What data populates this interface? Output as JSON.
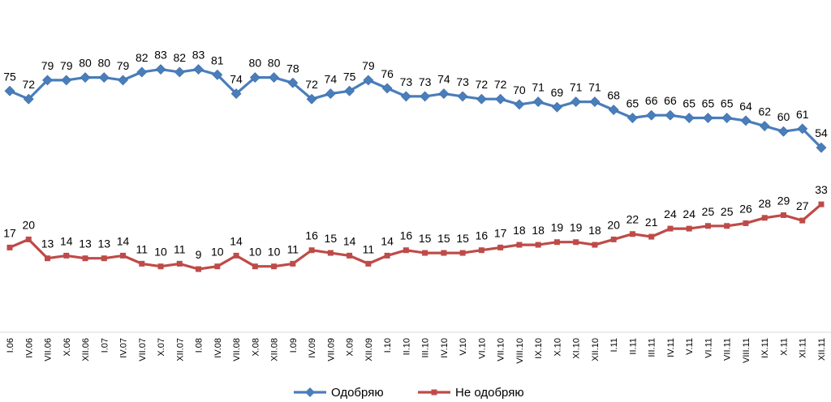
{
  "chart_data": {
    "type": "line",
    "categories": [
      "I.06",
      "IV.06",
      "VII.06",
      "X.06",
      "XII.06",
      "I.07",
      "IV.07",
      "VII.07",
      "X.07",
      "XII.07",
      "I.08",
      "IV.08",
      "VII.08",
      "X.08",
      "XII.08",
      "I.09",
      "IV.09",
      "VII.09",
      "X.09",
      "XII.09",
      "I.10",
      "II.10",
      "III.10",
      "IV.10",
      "V.10",
      "VI.10",
      "VII.10",
      "VIII.10",
      "IX.10",
      "X.10",
      "XI.10",
      "XII.10",
      "I.11",
      "II.11",
      "III.11",
      "IV.11",
      "V.11",
      "VI.11",
      "VII.11",
      "VIII.11",
      "IX.11",
      "X.11",
      "XI.11",
      "XII.11"
    ],
    "series": [
      {
        "name": "Одобряю",
        "color": "#4A7EBB",
        "marker": "diamond",
        "values": [
          75,
          72,
          79,
          79,
          80,
          80,
          79,
          82,
          83,
          82,
          83,
          81,
          74,
          80,
          80,
          78,
          72,
          74,
          75,
          79,
          76,
          73,
          73,
          74,
          73,
          72,
          72,
          70,
          71,
          69,
          71,
          71,
          68,
          65,
          66,
          66,
          65,
          65,
          65,
          64,
          62,
          60,
          61,
          54
        ]
      },
      {
        "name": "Не одобряю",
        "color": "#BE4B48",
        "marker": "square",
        "values": [
          17,
          20,
          13,
          14,
          13,
          13,
          14,
          11,
          10,
          11,
          9,
          10,
          14,
          10,
          10,
          11,
          16,
          15,
          14,
          11,
          14,
          16,
          15,
          15,
          15,
          16,
          17,
          18,
          18,
          19,
          19,
          18,
          20,
          22,
          21,
          24,
          24,
          25,
          25,
          26,
          28,
          29,
          27,
          33
        ]
      }
    ],
    "title": "",
    "xlabel": "",
    "ylabel": "",
    "legend": "bottom",
    "grid": false
  }
}
